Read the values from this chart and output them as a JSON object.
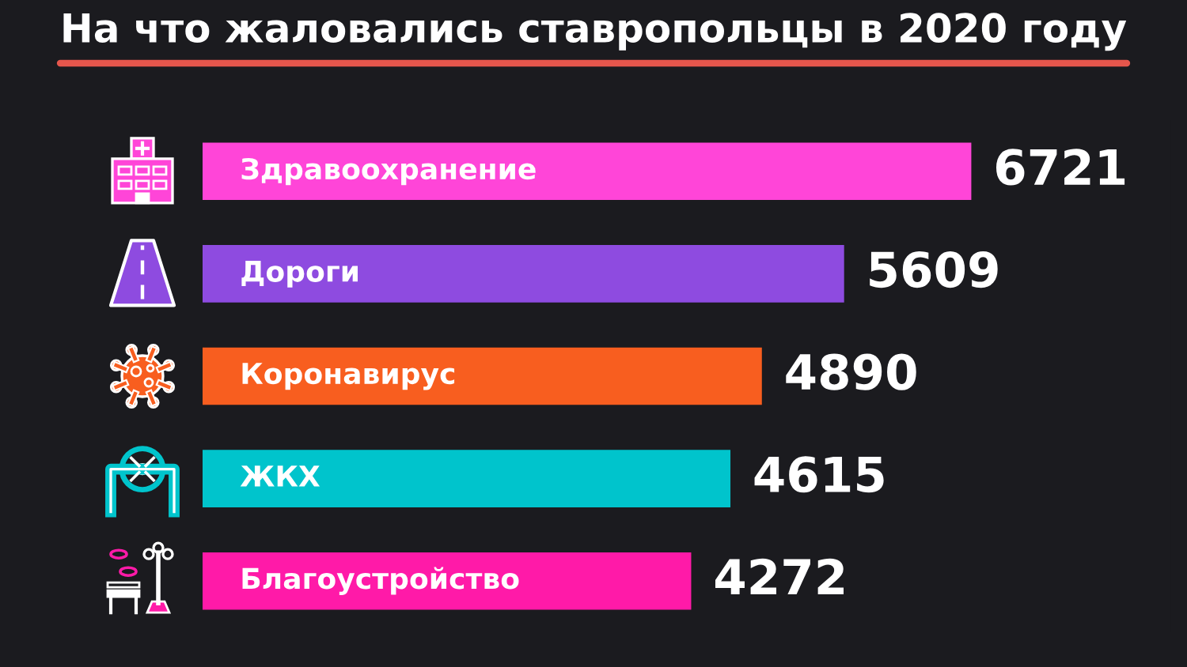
{
  "chart_data": {
    "type": "bar",
    "orientation": "horizontal",
    "title": "На что жаловались ставропольцы в 2020 году",
    "categories": [
      "Здравоохранение",
      "Дороги",
      "Коронавирус",
      "ЖКХ",
      "Благоустройство"
    ],
    "values": [
      6721,
      5609,
      4890,
      4615,
      4272
    ],
    "colors": [
      "#ff45d8",
      "#8e4be0",
      "#f85e1f",
      "#00c4cc",
      "#ff1aa8"
    ],
    "data_labels": true,
    "tick_labels": "y"
  }
}
